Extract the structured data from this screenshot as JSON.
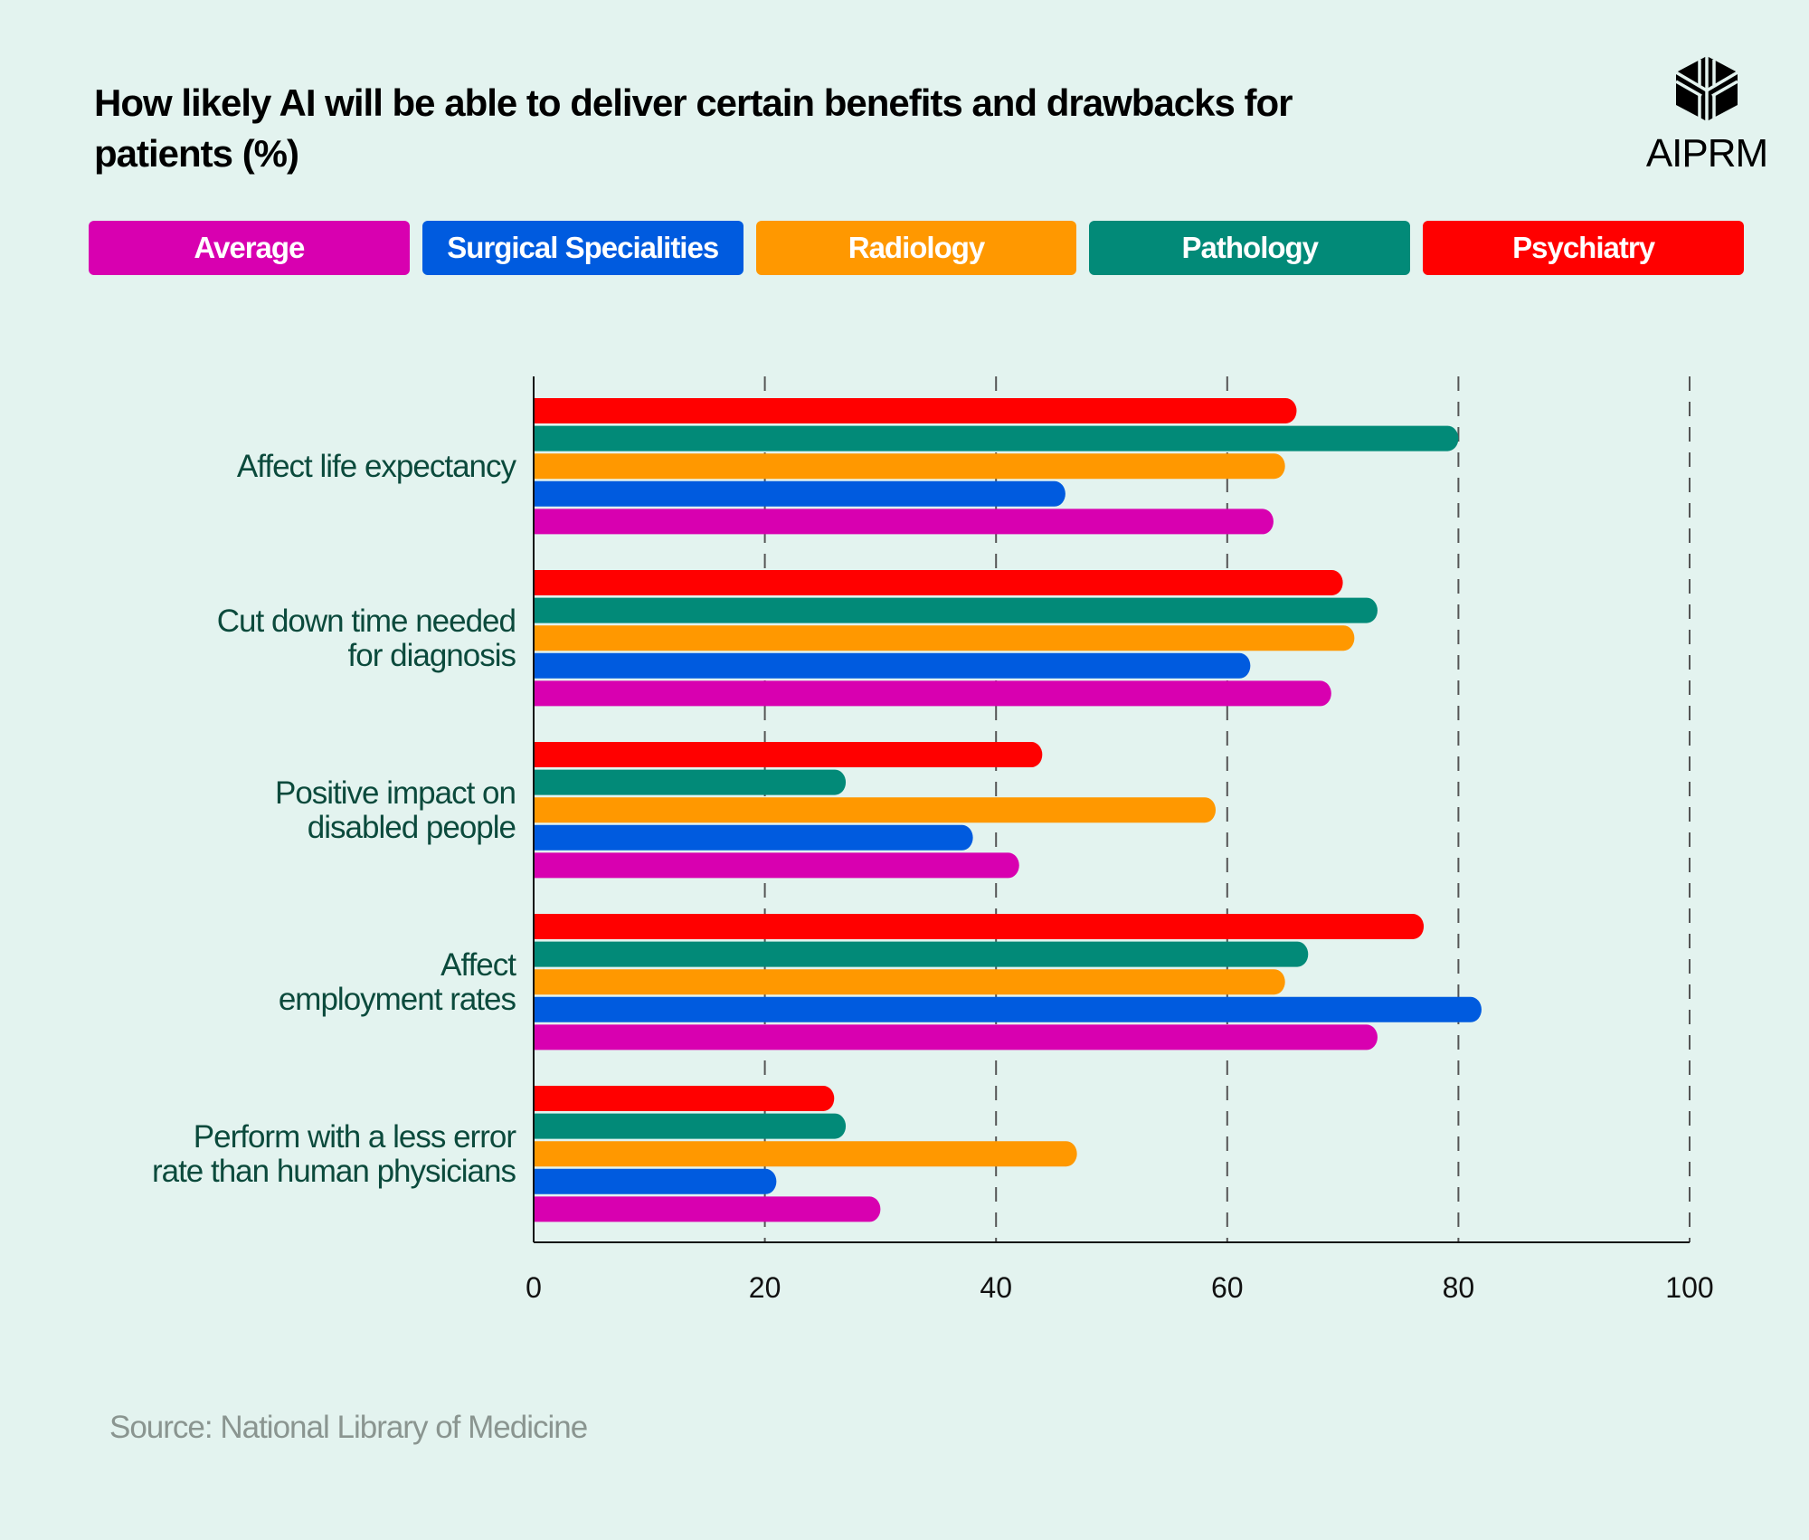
{
  "title": "How likely AI will be able to deliver certain benefits and drawbacks for patients (%)",
  "logo": {
    "text": "AIPRM",
    "icon": "aiprm-cube-logo"
  },
  "source": "Source: National Library of Medicine",
  "chart_data": {
    "type": "bar",
    "orientation": "horizontal",
    "title": "How likely AI will be able to deliver certain benefits and drawbacks for patients (%)",
    "categories": [
      "Affect life expectancy",
      "Cut down time needed for diagnosis",
      "Positive impact on disabled people",
      "Affect employment rates",
      "Perform with a less error rate than human physicians"
    ],
    "category_lines": [
      [
        "Affect life expectancy"
      ],
      [
        "Cut down time needed",
        "for diagnosis"
      ],
      [
        "Positive impact on",
        "disabled people"
      ],
      [
        "Affect",
        "employment rates"
      ],
      [
        "Perform with a less error",
        "rate than human physicians"
      ]
    ],
    "series": [
      {
        "name": "Average",
        "color": "#d800b0",
        "values": [
          64,
          69,
          42,
          73,
          30
        ]
      },
      {
        "name": "Surgical Specialities",
        "color": "#005bdf",
        "values": [
          46,
          62,
          38,
          82,
          21
        ]
      },
      {
        "name": "Radiology",
        "color": "#ff9800",
        "values": [
          65,
          71,
          59,
          65,
          47
        ]
      },
      {
        "name": "Pathology",
        "color": "#028a78",
        "values": [
          80,
          73,
          27,
          67,
          27
        ]
      },
      {
        "name": "Psychiatry",
        "color": "#ff0000",
        "values": [
          66,
          70,
          44,
          77,
          26
        ]
      }
    ],
    "xlim": [
      0,
      100
    ],
    "xticks": [
      "0",
      "20",
      "40",
      "60",
      "80",
      "100"
    ],
    "grid": "vertical dashed",
    "legend": "top"
  }
}
